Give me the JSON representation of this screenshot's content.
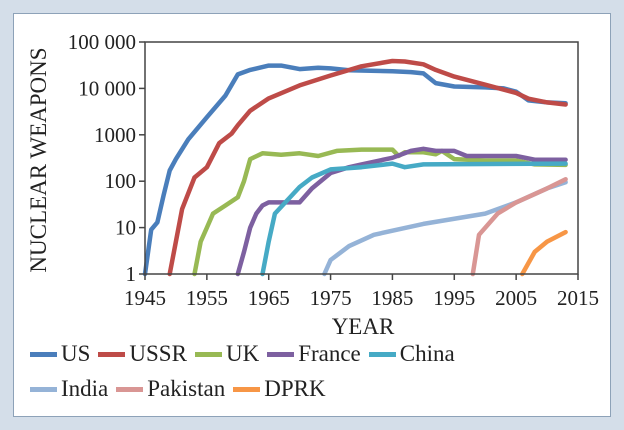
{
  "chart_data": {
    "type": "line",
    "title": "",
    "xlabel": "YEAR",
    "ylabel": "NUCLEAR WEAPONS",
    "xlim": [
      1945,
      2015
    ],
    "ylim": [
      1,
      100000
    ],
    "yscale": "log",
    "grid": false,
    "legend_position": "bottom",
    "x_ticks": [
      "1945",
      "1955",
      "1965",
      "1975",
      "1985",
      "1995",
      "2005",
      "2015"
    ],
    "y_ticks": [
      "1",
      "10",
      "100",
      "1000",
      "10 000",
      "100 000"
    ],
    "series": [
      {
        "name": "US",
        "color": "#4a7ebb",
        "points": [
          [
            1945,
            1
          ],
          [
            1946,
            9
          ],
          [
            1947,
            13
          ],
          [
            1948,
            50
          ],
          [
            1949,
            170
          ],
          [
            1950,
            300
          ],
          [
            1952,
            800
          ],
          [
            1955,
            2400
          ],
          [
            1958,
            7000
          ],
          [
            1960,
            20000
          ],
          [
            1962,
            25000
          ],
          [
            1965,
            31000
          ],
          [
            1967,
            31000
          ],
          [
            1970,
            26000
          ],
          [
            1973,
            28000
          ],
          [
            1975,
            27000
          ],
          [
            1978,
            24500
          ],
          [
            1985,
            23500
          ],
          [
            1988,
            22500
          ],
          [
            1990,
            21000
          ],
          [
            1992,
            13000
          ],
          [
            1995,
            11000
          ],
          [
            2000,
            10500
          ],
          [
            2003,
            10000
          ],
          [
            2005,
            8500
          ],
          [
            2007,
            5500
          ],
          [
            2010,
            5000
          ],
          [
            2013,
            4800
          ]
        ]
      },
      {
        "name": "USSR",
        "color": "#be4b48",
        "points": [
          [
            1949,
            1
          ],
          [
            1950,
            5
          ],
          [
            1951,
            25
          ],
          [
            1953,
            120
          ],
          [
            1955,
            200
          ],
          [
            1957,
            660
          ],
          [
            1959,
            1060
          ],
          [
            1960,
            1600
          ],
          [
            1962,
            3300
          ],
          [
            1965,
            6100
          ],
          [
            1970,
            11600
          ],
          [
            1975,
            19000
          ],
          [
            1980,
            30000
          ],
          [
            1985,
            39000
          ],
          [
            1987,
            38000
          ],
          [
            1990,
            33000
          ],
          [
            1992,
            25000
          ],
          [
            1995,
            18000
          ],
          [
            2000,
            12000
          ],
          [
            2005,
            8000
          ],
          [
            2007,
            6000
          ],
          [
            2010,
            5000
          ],
          [
            2013,
            4500
          ]
        ]
      },
      {
        "name": "UK",
        "color": "#98b954",
        "points": [
          [
            1953,
            1
          ],
          [
            1954,
            5
          ],
          [
            1955,
            10
          ],
          [
            1956,
            20
          ],
          [
            1958,
            30
          ],
          [
            1960,
            45
          ],
          [
            1961,
            100
          ],
          [
            1962,
            300
          ],
          [
            1964,
            400
          ],
          [
            1967,
            370
          ],
          [
            1970,
            400
          ],
          [
            1973,
            350
          ],
          [
            1976,
            450
          ],
          [
            1980,
            480
          ],
          [
            1985,
            480
          ],
          [
            1986,
            350
          ],
          [
            1987,
            420
          ],
          [
            1990,
            420
          ],
          [
            1992,
            380
          ],
          [
            1993,
            450
          ],
          [
            1995,
            300
          ],
          [
            2000,
            280
          ],
          [
            2005,
            280
          ],
          [
            2008,
            230
          ],
          [
            2013,
            225
          ]
        ]
      },
      {
        "name": "France",
        "color": "#7d60a0",
        "points": [
          [
            1960,
            1
          ],
          [
            1961,
            3
          ],
          [
            1962,
            10
          ],
          [
            1963,
            20
          ],
          [
            1964,
            30
          ],
          [
            1965,
            35
          ],
          [
            1970,
            35
          ],
          [
            1972,
            70
          ],
          [
            1975,
            150
          ],
          [
            1978,
            200
          ],
          [
            1980,
            230
          ],
          [
            1985,
            320
          ],
          [
            1988,
            450
          ],
          [
            1990,
            500
          ],
          [
            1992,
            450
          ],
          [
            1995,
            450
          ],
          [
            1997,
            350
          ],
          [
            2005,
            350
          ],
          [
            2008,
            290
          ],
          [
            2013,
            290
          ]
        ]
      },
      {
        "name": "China",
        "color": "#46aac5",
        "points": [
          [
            1964,
            1
          ],
          [
            1965,
            5
          ],
          [
            1966,
            20
          ],
          [
            1970,
            75
          ],
          [
            1972,
            120
          ],
          [
            1975,
            180
          ],
          [
            1980,
            200
          ],
          [
            1985,
            240
          ],
          [
            1987,
            200
          ],
          [
            1990,
            230
          ],
          [
            2013,
            240
          ]
        ]
      },
      {
        "name": "India",
        "color": "#95b3d7",
        "points": [
          [
            1974,
            1
          ],
          [
            1975,
            2
          ],
          [
            1978,
            4
          ],
          [
            1982,
            7
          ],
          [
            1990,
            12
          ],
          [
            2000,
            20
          ],
          [
            2005,
            35
          ],
          [
            2010,
            70
          ],
          [
            2013,
            95
          ]
        ]
      },
      {
        "name": "Pakistan",
        "color": "#d99694",
        "points": [
          [
            1998,
            1
          ],
          [
            1999,
            7
          ],
          [
            2002,
            20
          ],
          [
            2005,
            35
          ],
          [
            2010,
            70
          ],
          [
            2013,
            110
          ]
        ]
      },
      {
        "name": "DPRK",
        "color": "#f79646",
        "points": [
          [
            2006,
            1
          ],
          [
            2008,
            3
          ],
          [
            2010,
            5
          ],
          [
            2013,
            8
          ]
        ]
      }
    ]
  }
}
